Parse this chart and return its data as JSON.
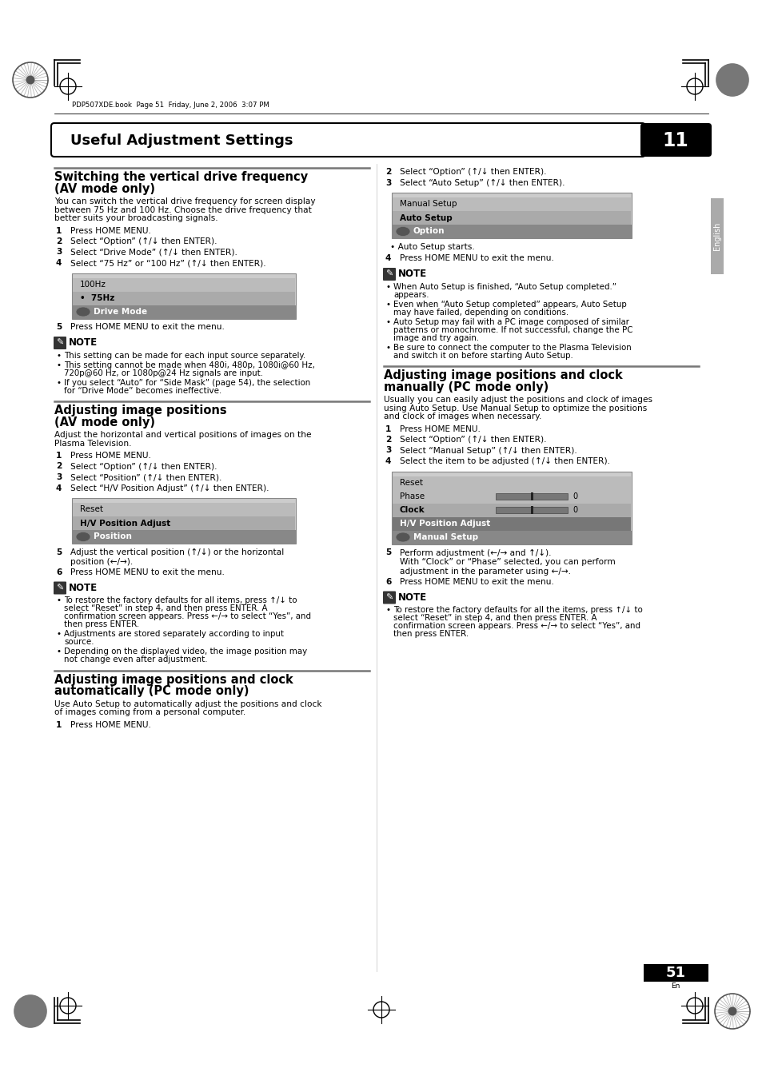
{
  "page_bg": "#ffffff",
  "header_text": "PDP507XDE.book  Page 51  Friday, June 2, 2006  3:07 PM",
  "title": "Useful Adjustment Settings",
  "chapter_num": "11",
  "page_num": "51",
  "lang_label": "English"
}
